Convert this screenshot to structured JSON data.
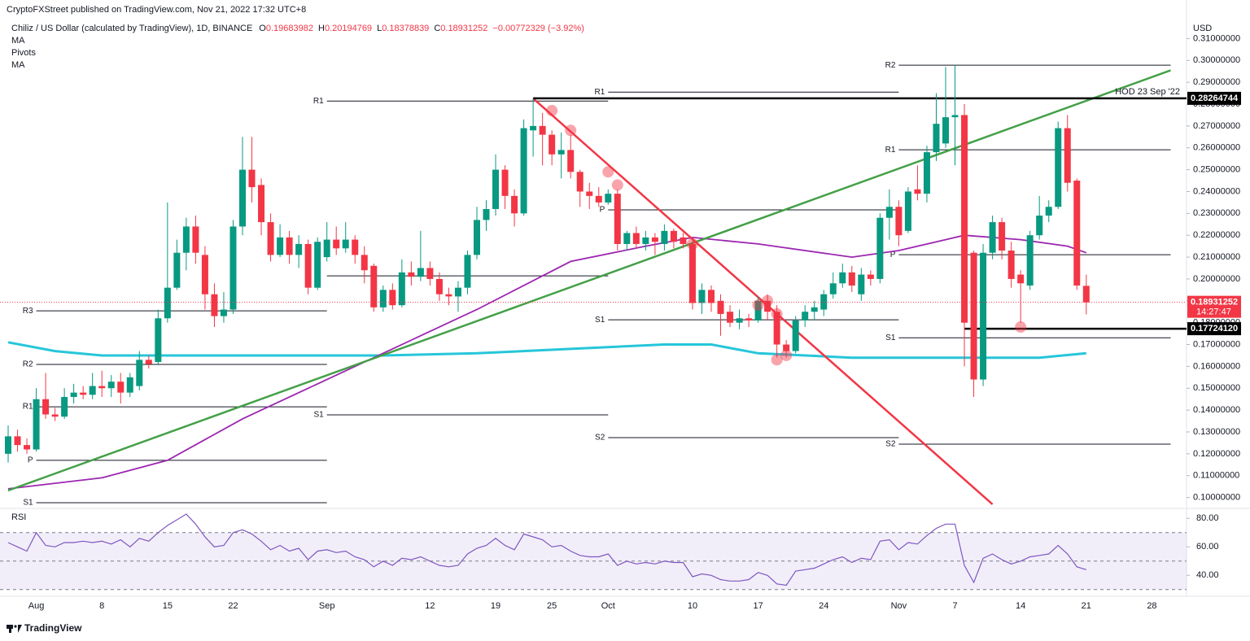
{
  "header": {
    "publisher": "CryptoFXStreet published on TradingView.com, Nov 21, 2022 17:32 UTC+8",
    "symbol": "Chiliz / US Dollar (calculated by TradingView), 1D, BINANCE",
    "ohlc": [
      {
        "label": "O",
        "value": "0.19683982"
      },
      {
        "label": "H",
        "value": "0.20194769"
      },
      {
        "label": "L",
        "value": "0.18378839"
      },
      {
        "label": "C",
        "value": "0.18931252"
      }
    ],
    "change": "−0.00772329 (−3.92%)",
    "indicators": [
      "MA",
      "Pivots",
      "MA"
    ]
  },
  "chart_data": {
    "type": "candlestick",
    "currency": "USD",
    "up_color": "#089981",
    "down_color": "#f23645",
    "categories": [
      null,
      null,
      null,
      "Aug",
      null,
      null,
      null,
      null,
      null,
      null,
      "8",
      null,
      null,
      null,
      null,
      null,
      null,
      "15",
      null,
      null,
      null,
      null,
      null,
      null,
      "22",
      null,
      null,
      null,
      null,
      null,
      null,
      null,
      null,
      null,
      "Sep",
      null,
      null,
      null,
      null,
      null,
      null,
      null,
      null,
      null,
      null,
      "12",
      null,
      null,
      null,
      null,
      null,
      null,
      "19",
      null,
      null,
      null,
      null,
      null,
      "25",
      null,
      null,
      null,
      null,
      null,
      "Oct",
      null,
      null,
      null,
      null,
      null,
      null,
      null,
      null,
      "10",
      null,
      null,
      null,
      null,
      null,
      null,
      "17",
      null,
      null,
      null,
      null,
      null,
      null,
      "24",
      null,
      null,
      null,
      null,
      null,
      null,
      null,
      "Nov",
      null,
      null,
      null,
      null,
      null,
      "7",
      null,
      null,
      null,
      null,
      null,
      null,
      "14",
      null,
      null,
      null,
      null,
      null,
      null,
      "21",
      null,
      null,
      null,
      null,
      null,
      null,
      "28",
      null,
      null
    ],
    "open": [
      0.12,
      0.128,
      0.124,
      0.122,
      0.145,
      0.138,
      0.137,
      0.146,
      0.148,
      0.147,
      0.151,
      0.15,
      0.153,
      0.148,
      0.151,
      0.163,
      0.162,
      0.182,
      0.196,
      0.212,
      0.224,
      0.211,
      0.193,
      0.183,
      0.186,
      0.224,
      0.25,
      0.243,
      0.226,
      0.211,
      0.219,
      0.211,
      0.216,
      0.196,
      0.21,
      0.218,
      0.214,
      0.218,
      0.211,
      0.206,
      0.187,
      0.195,
      0.188,
      0.203,
      0.201,
      0.205,
      0.2,
      0.193,
      0.192,
      0.196,
      0.211,
      0.227,
      0.232,
      0.25,
      0.238,
      0.23,
      0.268,
      0.27,
      0.266,
      0.257,
      0.259,
      0.249,
      0.24,
      0.238,
      0.235,
      0.239,
      0.216,
      0.221,
      0.216,
      0.219,
      0.216,
      0.222,
      0.219,
      0.216,
      0.189,
      0.195,
      0.19,
      0.185,
      0.18,
      0.182,
      0.181,
      0.19,
      0.185,
      0.17,
      0.167,
      0.181,
      0.185,
      0.186,
      0.193,
      0.198,
      0.203,
      0.193,
      0.202,
      0.2,
      0.228,
      0.233,
      0.222,
      0.241,
      0.239,
      0.258,
      0.262,
      0.274,
      0.275,
      0.212,
      0.154,
      0.212,
      0.226,
      0.213,
      0.202,
      0.197,
      0.22,
      0.229,
      0.233,
      0.269,
      0.245,
      0.19683982,
      null,
      null,
      null,
      null,
      null,
      null,
      null,
      null,
      null
    ],
    "high": [
      0.133,
      0.131,
      0.127,
      0.15,
      0.157,
      0.141,
      0.15,
      0.152,
      0.151,
      0.157,
      0.158,
      0.156,
      0.157,
      0.157,
      0.167,
      0.165,
      0.186,
      0.235,
      0.218,
      0.228,
      0.229,
      0.215,
      0.198,
      0.194,
      0.227,
      0.265,
      0.265,
      0.246,
      0.23,
      0.225,
      0.222,
      0.22,
      0.218,
      0.219,
      0.226,
      0.224,
      0.226,
      0.22,
      0.215,
      0.207,
      0.197,
      0.198,
      0.209,
      0.208,
      0.222,
      0.208,
      0.203,
      0.196,
      0.199,
      0.213,
      0.233,
      0.236,
      0.257,
      0.252,
      0.241,
      0.273,
      0.2826,
      0.276,
      0.268,
      0.267,
      0.266,
      0.25,
      0.244,
      0.242,
      0.241,
      0.241,
      0.222,
      0.224,
      0.222,
      0.221,
      0.225,
      0.223,
      0.221,
      0.218,
      0.198,
      0.197,
      0.193,
      0.188,
      0.186,
      0.184,
      0.192,
      0.193,
      0.188,
      0.172,
      0.183,
      0.188,
      0.19,
      0.195,
      0.203,
      0.207,
      0.206,
      0.205,
      0.204,
      0.23,
      0.241,
      0.236,
      0.242,
      0.252,
      0.261,
      0.285,
      0.297,
      0.298,
      0.28,
      0.213,
      0.216,
      0.229,
      0.228,
      0.217,
      0.204,
      0.222,
      0.238,
      0.236,
      0.272,
      0.275,
      0.246,
      0.20194769,
      null,
      null,
      null,
      null,
      null,
      null,
      null,
      null,
      null
    ],
    "low": [
      0.116,
      0.121,
      0.12,
      0.121,
      0.136,
      0.135,
      0.136,
      0.143,
      0.145,
      0.145,
      0.146,
      0.146,
      0.143,
      0.146,
      0.149,
      0.159,
      0.161,
      0.18,
      0.195,
      0.204,
      0.207,
      0.186,
      0.178,
      0.18,
      0.184,
      0.22,
      0.235,
      0.22,
      0.208,
      0.21,
      0.207,
      0.205,
      0.193,
      0.195,
      0.208,
      0.211,
      0.212,
      0.207,
      0.198,
      0.185,
      0.185,
      0.186,
      0.187,
      0.197,
      0.199,
      0.197,
      0.19,
      0.188,
      0.185,
      0.193,
      0.209,
      0.222,
      0.229,
      0.232,
      0.224,
      0.229,
      0.256,
      0.252,
      0.252,
      0.246,
      0.246,
      0.233,
      0.232,
      0.233,
      0.234,
      0.213,
      0.213,
      0.214,
      0.213,
      0.211,
      0.213,
      0.214,
      0.214,
      0.186,
      0.184,
      0.185,
      0.174,
      0.178,
      0.177,
      0.178,
      0.18,
      0.181,
      0.164,
      0.164,
      0.166,
      0.178,
      0.181,
      0.183,
      0.191,
      0.196,
      0.194,
      0.19,
      0.197,
      0.198,
      0.218,
      0.215,
      0.221,
      0.236,
      0.235,
      0.254,
      0.26,
      0.252,
      0.16,
      0.146,
      0.151,
      0.209,
      0.209,
      0.196,
      0.18,
      0.195,
      0.218,
      0.226,
      0.232,
      0.24,
      0.195,
      0.18378839,
      null,
      null,
      null,
      null,
      null,
      null,
      null,
      null,
      null
    ],
    "close": [
      0.128,
      0.124,
      0.122,
      0.145,
      0.138,
      0.137,
      0.146,
      0.148,
      0.147,
      0.151,
      0.15,
      0.153,
      0.148,
      0.155,
      0.163,
      0.161,
      0.182,
      0.196,
      0.212,
      0.224,
      0.212,
      0.193,
      0.183,
      0.186,
      0.224,
      0.25,
      0.242,
      0.226,
      0.211,
      0.219,
      0.211,
      0.216,
      0.196,
      0.217,
      0.218,
      0.214,
      0.218,
      0.211,
      0.204,
      0.187,
      0.195,
      0.188,
      0.203,
      0.201,
      0.205,
      0.2,
      0.193,
      0.192,
      0.196,
      0.211,
      0.227,
      0.232,
      0.25,
      0.238,
      0.23,
      0.269,
      0.27,
      0.266,
      0.257,
      0.259,
      0.249,
      0.24,
      0.238,
      0.235,
      0.239,
      0.216,
      0.221,
      0.216,
      0.219,
      0.217,
      0.222,
      0.217,
      0.216,
      0.189,
      0.195,
      0.189,
      0.184,
      0.18,
      0.182,
      0.181,
      0.19,
      0.185,
      0.17,
      0.167,
      0.181,
      0.185,
      0.187,
      0.193,
      0.198,
      0.203,
      0.197,
      0.202,
      0.2,
      0.228,
      0.233,
      0.22,
      0.24,
      0.239,
      0.258,
      0.271,
      0.274,
      0.275,
      0.18,
      0.154,
      0.212,
      0.226,
      0.213,
      0.2,
      0.198,
      0.22,
      0.229,
      0.233,
      0.269,
      0.244,
      0.197,
      0.18931252,
      null,
      null,
      null,
      null,
      null,
      null,
      null,
      null,
      null
    ],
    "ylim": [
      0.0965,
      0.3135
    ],
    "yticks": [
      {
        "value": 0.1,
        "label": "0.10000000"
      },
      {
        "value": 0.11,
        "label": "0.11000000"
      },
      {
        "value": 0.12,
        "label": "0.12000000"
      },
      {
        "value": 0.13,
        "label": "0.13000000"
      },
      {
        "value": 0.14,
        "label": "0.14000000"
      },
      {
        "value": 0.15,
        "label": "0.15000000"
      },
      {
        "value": 0.16,
        "label": "0.16000000"
      },
      {
        "value": 0.17,
        "label": "0.17000000"
      },
      {
        "value": 0.18,
        "label": "0.18000000"
      },
      {
        "value": 0.19,
        "label": "0.19000000"
      },
      {
        "value": 0.2,
        "label": "0.20000000"
      },
      {
        "value": 0.21,
        "label": "0.21000000"
      },
      {
        "value": 0.22,
        "label": "0.22000000"
      },
      {
        "value": 0.23,
        "label": "0.23000000"
      },
      {
        "value": 0.24,
        "label": "0.24000000"
      },
      {
        "value": 0.25,
        "label": "0.25000000"
      },
      {
        "value": 0.26,
        "label": "0.26000000"
      },
      {
        "value": 0.27,
        "label": "0.27000000"
      },
      {
        "value": 0.28,
        "label": "0.28000000"
      },
      {
        "value": 0.29,
        "label": "0.29000000"
      },
      {
        "value": 0.3,
        "label": "0.30000000"
      },
      {
        "value": 0.31,
        "label": "0.31000000"
      }
    ],
    "overlays": [
      {
        "color": "#26c6da",
        "x": [
          0,
          5,
          10,
          20,
          30,
          40,
          50,
          60,
          70,
          75,
          80,
          90,
          100,
          110,
          115
        ],
        "values": [
          0.171,
          0.167,
          0.165,
          0.165,
          0.165,
          0.165,
          0.166,
          0.168,
          0.17,
          0.17,
          0.166,
          0.164,
          0.164,
          0.164,
          0.166
        ]
      },
      {
        "color": "#9c27b0",
        "x": [
          0,
          10,
          17,
          25,
          33,
          41,
          50,
          60,
          68,
          73,
          80,
          90,
          95,
          100,
          102,
          108,
          113,
          115
        ],
        "values": [
          0.104,
          0.109,
          0.117,
          0.136,
          0.152,
          0.168,
          0.186,
          0.208,
          0.215,
          0.219,
          0.216,
          0.21,
          0.213,
          0.218,
          0.22,
          0.218,
          0.215,
          0.212
        ]
      }
    ],
    "trendlines": [
      {
        "color": "#43a047",
        "x": [
          0,
          124
        ],
        "values": [
          0.1032,
          0.2955
        ]
      },
      {
        "color": "#f23645",
        "x": [
          56,
          105
        ],
        "values": [
          0.2826,
          0.0969
        ]
      }
    ],
    "pivots": [
      {
        "from": 3,
        "to": 34,
        "levels": [
          {
            "label": "R3",
            "value": 0.1854
          },
          {
            "label": "R2",
            "value": 0.1609
          },
          {
            "label": "R1",
            "value": 0.1415
          },
          {
            "label": "P",
            "value": 0.117
          },
          {
            "label": "S1",
            "value": 0.0976
          }
        ]
      },
      {
        "from": 34,
        "to": 64,
        "levels": [
          {
            "label": "R1",
            "value": 0.2814
          },
          {
            "value": 0.2014
          },
          {
            "label": "S1",
            "value": 0.1378
          }
        ]
      },
      {
        "from": 64,
        "to": 95,
        "levels": [
          {
            "label": "R1",
            "value": 0.2855
          },
          {
            "label": "P",
            "value": 0.2316
          },
          {
            "label": "S1",
            "value": 0.1813
          },
          {
            "label": "S2",
            "value": 0.1274
          }
        ]
      },
      {
        "from": 95,
        "to": 124,
        "levels": [
          {
            "label": "R2",
            "value": 0.2978
          },
          {
            "label": "R1",
            "value": 0.2591
          },
          {
            "label": "P",
            "value": 0.2111
          },
          {
            "label": "S1",
            "value": 0.1731
          },
          {
            "label": "S2",
            "value": 0.1244
          }
        ]
      }
    ],
    "levels": [
      {
        "value": 0.28264744,
        "label": "0.28264744",
        "from": 56
      },
      {
        "value": 0.1772412,
        "label": "0.17724120",
        "from": 102
      }
    ],
    "last_price": {
      "value": 0.18931252,
      "label": "0.18931252",
      "countdown": "14:27:47",
      "color": "#f23645"
    },
    "annotation": "HOD 23 Sep '22",
    "markers": {
      "color": "rgba(242,54,69,0.45)",
      "x": [
        58,
        60,
        64,
        65,
        73,
        80,
        81,
        82,
        82,
        83,
        108
      ],
      "values": [
        0.277,
        0.268,
        0.249,
        0.243,
        0.216,
        0.188,
        0.19,
        0.184,
        0.163,
        0.165,
        0.178
      ]
    }
  },
  "rsi_data": {
    "type": "line",
    "title": "RSI",
    "color": "#7e57c2",
    "values": [
      63,
      60,
      57,
      70,
      61,
      60,
      63,
      63,
      64,
      63,
      64,
      62,
      65,
      60,
      66,
      64,
      70,
      75,
      79,
      83,
      76,
      67,
      60,
      61,
      70,
      72,
      69,
      64,
      58,
      61,
      57,
      59,
      51,
      57,
      58,
      56,
      57,
      53,
      51,
      46,
      50,
      47,
      52,
      51,
      53,
      50,
      47,
      46,
      47,
      55,
      59,
      61,
      66,
      61,
      58,
      69,
      67,
      65,
      60,
      61,
      57,
      54,
      53,
      53,
      55,
      47,
      50,
      48,
      49,
      48,
      50,
      49,
      49,
      39,
      41,
      40,
      37,
      36,
      36,
      37,
      42,
      40,
      34,
      33,
      43,
      44,
      45,
      48,
      51,
      53,
      49,
      52,
      51,
      64,
      65,
      58,
      63,
      62,
      68,
      73,
      76,
      76,
      47,
      35,
      52,
      55,
      51,
      48,
      50,
      53,
      54,
      55,
      61,
      55,
      46,
      44,
      null,
      null,
      null,
      null,
      null,
      null,
      null,
      null,
      null
    ],
    "ylim": [
      27,
      83
    ],
    "yticks": [
      {
        "value": 80,
        "label": "80.00"
      },
      {
        "value": 60,
        "label": "60.00"
      },
      {
        "value": 40,
        "label": "40.00"
      }
    ],
    "bands": [
      70,
      50,
      30
    ]
  },
  "footer": "TradingView"
}
